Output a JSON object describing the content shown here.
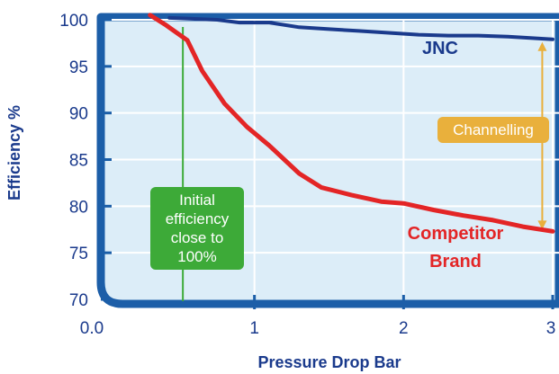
{
  "chart_data": {
    "type": "line",
    "xlabel": "Pressure Drop Bar",
    "ylabel": "Efficiency %",
    "xlim": [
      0,
      3
    ],
    "ylim": [
      70,
      100
    ],
    "x_ticks": [
      "0.0",
      "1",
      "2",
      "3"
    ],
    "y_ticks": [
      "70",
      "75",
      "80",
      "85",
      "90",
      "95",
      "100"
    ],
    "grid": true,
    "series": [
      {
        "name": "JNC",
        "color": "#1a3a8c",
        "x": [
          0.43,
          0.6,
          0.75,
          0.9,
          1.1,
          1.3,
          1.5,
          1.7,
          1.9,
          2.1,
          2.3,
          2.5,
          2.7,
          2.9,
          3.0
        ],
        "y": [
          100.2,
          100.1,
          100.0,
          99.7,
          99.7,
          99.2,
          99.0,
          98.8,
          98.6,
          98.4,
          98.3,
          98.3,
          98.2,
          98.0,
          97.9
        ]
      },
      {
        "name": "Competitor Brand",
        "color": "#e32526",
        "x": [
          0.3,
          0.4,
          0.55,
          0.65,
          0.8,
          0.95,
          1.1,
          1.3,
          1.45,
          1.65,
          1.85,
          2.0,
          2.2,
          2.4,
          2.6,
          2.8,
          3.0
        ],
        "y": [
          100.5,
          99.5,
          97.8,
          94.5,
          91.0,
          88.5,
          86.5,
          83.5,
          82.0,
          81.2,
          80.5,
          80.3,
          79.6,
          79.0,
          78.5,
          77.8,
          77.3
        ]
      }
    ],
    "annotations": {
      "initial": {
        "x": 0.52,
        "text_lines": [
          "Initial",
          "efficiency",
          "close to",
          "100%"
        ],
        "color": "#3daa38"
      },
      "channelling": {
        "x": 2.93,
        "y_from": 97.9,
        "y_to": 77.3,
        "text": "Channelling",
        "color": "#e9b03c"
      }
    },
    "series_labels": {
      "jnc": "JNC",
      "competitor_line1": "Competitor",
      "competitor_line2": "Brand"
    },
    "colors": {
      "plot_background": "#dcedf8",
      "frame": "#1c5ea8",
      "gridline": "#ffffff",
      "axis_text": "#1a3a8c"
    }
  }
}
